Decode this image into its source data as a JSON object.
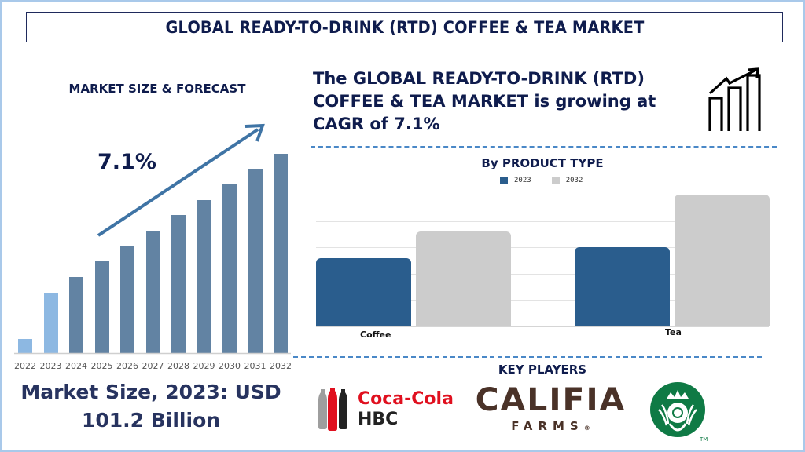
{
  "header": {
    "title": "GLOBAL READY-TO-DRINK (RTD) COFFEE & TEA MARKET"
  },
  "market_size_panel": {
    "title": "MARKET SIZE & FORECAST",
    "cagr_label": "7.1%",
    "footer_line1": "Market Size, 2023: USD",
    "footer_line2": "101.2 Billion",
    "colors": {
      "historical": "#8db8e2",
      "forecast": "#6283a3",
      "arrow": "#3f74a5"
    }
  },
  "headline": {
    "line1": "The GLOBAL READY-TO-DRINK (RTD)",
    "line2": "COFFEE & TEA MARKET is growing at",
    "line3": "CAGR of 7.1%",
    "icon": "growth-chart-icon"
  },
  "product_type_panel": {
    "title": "By PRODUCT TYPE",
    "legend": [
      {
        "label": "2023",
        "color": "#2a5d8d"
      },
      {
        "label": "2032",
        "color": "#cccccc"
      }
    ],
    "categories": [
      "Coffee",
      "Tea"
    ]
  },
  "key_players": {
    "title": "KEY PLAYERS",
    "players": [
      {
        "name": "Coca-Cola HBC",
        "line1": "Coca-Cola",
        "line2": "HBC"
      },
      {
        "name": "Califia Farms",
        "line1": "CALIFIA",
        "line2": "FARMS",
        "mark": "®"
      },
      {
        "name": "Starbucks",
        "mark": "TM"
      }
    ]
  },
  "chart_data": [
    {
      "type": "bar",
      "title": "MARKET SIZE & FORECAST",
      "categories": [
        "2022",
        "2023",
        "2024",
        "2025",
        "2026",
        "2027",
        "2028",
        "2029",
        "2030",
        "2031",
        "2032"
      ],
      "values": [
        18,
        77,
        97,
        117,
        136,
        156,
        176,
        195,
        215,
        234,
        254
      ],
      "value_units": "relative bar height (no axis shown)",
      "historical": [
        "2022",
        "2023"
      ],
      "annotation": "7.1% CAGR arrow",
      "xlabel": "",
      "ylabel": "",
      "grid": false,
      "legend": "none"
    },
    {
      "type": "bar",
      "title": "By PRODUCT TYPE",
      "categories": [
        "Coffee",
        "Tea"
      ],
      "series": [
        {
          "name": "2023",
          "values": [
            2.6,
            3.0
          ]
        },
        {
          "name": "2032",
          "values": [
            3.6,
            5.0
          ]
        }
      ],
      "ylim": [
        0,
        5
      ],
      "value_units": "relative (gridline units, no axis labels shown)",
      "grid": true,
      "legend": "top"
    }
  ]
}
